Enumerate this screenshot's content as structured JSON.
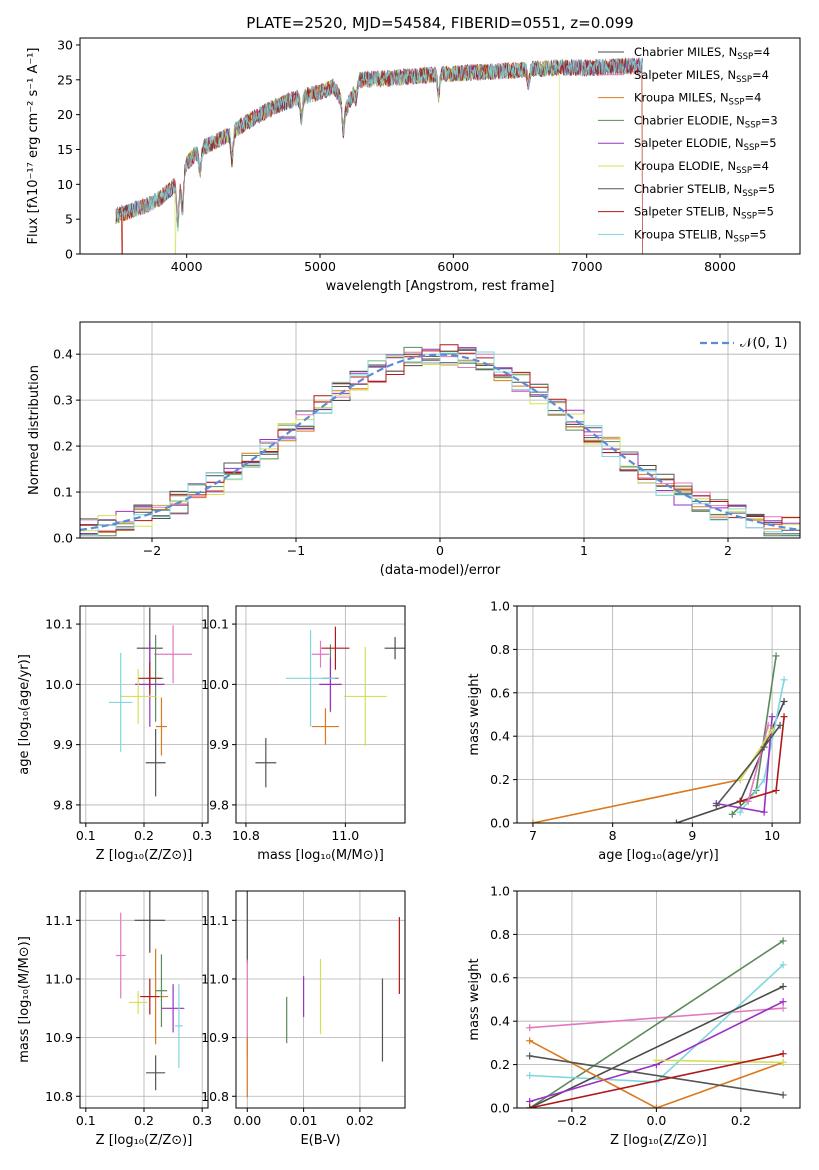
{
  "title": "PLATE=2520, MJD=54584, FIBERID=0551, z=0.099",
  "models": [
    {
      "name": "Chabrier MILES, N",
      "sub": "SSP",
      "n": "=4",
      "color": "#4a4a4a"
    },
    {
      "name": "Salpeter MILES, N",
      "sub": "SSP",
      "n": "=4",
      "color": "#e377c2"
    },
    {
      "name": "Kroupa MILES, N",
      "sub": "SSP",
      "n": "=4",
      "color": "#d97a1e"
    },
    {
      "name": "Chabrier ELODIE, N",
      "sub": "SSP",
      "n": "=3",
      "color": "#5a8a5a"
    },
    {
      "name": "Salpeter ELODIE, N",
      "sub": "SSP",
      "n": "=5",
      "color": "#9b30c4"
    },
    {
      "name": "Kroupa ELODIE, N",
      "sub": "SSP",
      "n": "=4",
      "color": "#d4e157"
    },
    {
      "name": "Chabrier STELIB, N",
      "sub": "SSP",
      "n": "=5",
      "color": "#555555"
    },
    {
      "name": "Salpeter STELIB, N",
      "sub": "SSP",
      "n": "=5",
      "color": "#b01818"
    },
    {
      "name": "Kroupa STELIB, N",
      "sub": "SSP",
      "n": "=5",
      "color": "#7fd6e0"
    }
  ],
  "chart_data": [
    {
      "type": "line",
      "xlabel": "wavelength [Angstrom, rest frame]",
      "ylabel": "Flux [fλ10⁻¹⁷ erg cm⁻² s⁻¹ A⁻¹]",
      "xlim": [
        3200,
        8600
      ],
      "ylim": [
        0,
        31
      ],
      "xticks": [
        4000,
        5000,
        6000,
        7000,
        8000
      ],
      "yticks": [
        0,
        5,
        10,
        15,
        20,
        25,
        30
      ],
      "spectrum_anchors": {
        "x": [
          3470,
          3550,
          3700,
          3800,
          3950,
          4000,
          4100,
          4300,
          4500,
          4700,
          4850,
          5000,
          5100,
          5200,
          5300,
          5500,
          5700,
          5900,
          6100,
          6300,
          6500,
          6600,
          6800,
          7000,
          7200,
          7400
        ],
        "y": [
          5.5,
          6,
          7,
          8,
          10.5,
          13,
          15,
          17,
          19.5,
          21.5,
          22.5,
          23.2,
          24,
          21,
          25,
          25.2,
          25.5,
          25.8,
          26,
          26.2,
          26.4,
          26.5,
          26.8,
          26.7,
          26.9,
          27
        ]
      },
      "spectrum_edges": {
        "Kroupa ELODIE": [
          3920,
          6800
        ],
        "Salpeter STELIB": [
          3520,
          7420
        ],
        "Kroupa MILES": [
          3520,
          7420
        ]
      },
      "grid": false,
      "legend": "right"
    },
    {
      "type": "bar",
      "xlabel": "(data-model)/error",
      "ylabel": "Normed distribution",
      "xlim": [
        -2.5,
        2.5
      ],
      "ylim": [
        0,
        0.47
      ],
      "xticks": [
        -2,
        -1,
        0,
        1,
        2
      ],
      "yticks": [
        0,
        0.1,
        0.2,
        0.3,
        0.4
      ],
      "bins": 40,
      "reference_label": "𝒩(0, 1)",
      "reference_color": "#5b8bd6",
      "grid": true,
      "legend": "top-right"
    },
    {
      "type": "scatter",
      "xlabel": "Z [log₁₀(Z/Z⊙)]",
      "ylabel": "age  [log₁₀(age/yr)]",
      "xlim": [
        0.09,
        0.31
      ],
      "ylim": [
        9.77,
        10.13
      ],
      "xticks": [
        0.1,
        0.2,
        0.3
      ],
      "yticks": [
        9.8,
        9.9,
        10.0,
        10.1
      ],
      "points": [
        [
          0.21,
          10.06
        ],
        [
          0.25,
          10.05
        ],
        [
          0.23,
          9.93
        ],
        [
          0.22,
          10.01
        ],
        [
          0.21,
          10.0
        ],
        [
          0.19,
          9.98
        ],
        [
          0.22,
          9.87
        ],
        [
          0.21,
          10.01
        ],
        [
          0.16,
          9.97
        ]
      ],
      "grid": true
    },
    {
      "type": "scatter",
      "xlabel": "mass [log₁₀(M/M⊙)]",
      "ylabel": "",
      "xlim": [
        10.78,
        11.12
      ],
      "ylim": [
        9.77,
        10.13
      ],
      "xticks": [
        10.8,
        11.0
      ],
      "yticks": [
        9.8,
        9.9,
        10.0,
        10.1
      ],
      "points": [
        [
          11.1,
          10.06
        ],
        [
          10.95,
          10.05
        ],
        [
          10.96,
          9.93
        ],
        [
          10.97,
          10.01
        ],
        [
          10.97,
          10.0
        ],
        [
          11.04,
          9.98
        ],
        [
          10.84,
          9.87
        ],
        [
          10.98,
          10.06
        ],
        [
          10.93,
          10.01
        ]
      ],
      "grid": true
    },
    {
      "type": "line",
      "xlabel": "age  [log₁₀(age/yr)]",
      "ylabel": "mass weight",
      "xlim": [
        6.8,
        10.35
      ],
      "ylim": [
        0,
        1.0
      ],
      "xticks": [
        7,
        8,
        9,
        10
      ],
      "yticks": [
        0,
        0.2,
        0.4,
        0.6,
        0.8,
        1.0
      ],
      "series": [
        {
          "name": "Chabrier ELODIE",
          "values": [
            [
              9.5,
              0.04
            ],
            [
              9.8,
              0.15
            ],
            [
              10.05,
              0.77
            ]
          ]
        },
        {
          "name": "Kroupa MILES",
          "values": [
            [
              7.0,
              0.0
            ],
            [
              9.6,
              0.2
            ],
            [
              10.0,
              0.42
            ]
          ]
        },
        {
          "name": "Chabrier MILES",
          "values": [
            [
              8.8,
              0.0
            ],
            [
              9.6,
              0.1
            ],
            [
              10.15,
              0.56
            ]
          ]
        },
        {
          "name": "Kroupa STELIB",
          "values": [
            [
              9.6,
              0.05
            ],
            [
              9.9,
              0.2
            ],
            [
              10.15,
              0.66
            ]
          ]
        },
        {
          "name": "Salpeter ELODIE",
          "values": [
            [
              9.3,
              0.09
            ],
            [
              9.9,
              0.05
            ],
            [
              10.0,
              0.49
            ]
          ]
        },
        {
          "name": "Salpeter STELIB",
          "values": [
            [
              9.6,
              0.1
            ],
            [
              10.05,
              0.15
            ],
            [
              10.15,
              0.49
            ]
          ]
        },
        {
          "name": "Salpeter MILES",
          "values": [
            [
              9.7,
              0.1
            ],
            [
              9.95,
              0.45
            ]
          ]
        },
        {
          "name": "Kroupa ELODIE",
          "values": [
            [
              9.6,
              0.2
            ],
            [
              10.0,
              0.43
            ]
          ]
        },
        {
          "name": "Chabrier STELIB",
          "values": [
            [
              9.3,
              0.08
            ],
            [
              9.9,
              0.35
            ],
            [
              10.1,
              0.45
            ]
          ]
        }
      ],
      "grid": true
    },
    {
      "type": "errorbar",
      "xlabel": "Z [log₁₀(Z/Z⊙)]",
      "ylabel": "mass [log₁₀(M/M⊙)]",
      "xlim": [
        0.09,
        0.31
      ],
      "ylim": [
        10.78,
        11.15
      ],
      "xticks": [
        0.1,
        0.2,
        0.3
      ],
      "yticks": [
        10.8,
        10.9,
        11.0,
        11.1
      ],
      "points": [
        [
          0.21,
          11.1
        ],
        [
          0.16,
          11.04
        ],
        [
          0.22,
          10.97
        ],
        [
          0.23,
          10.98
        ],
        [
          0.25,
          10.95
        ],
        [
          0.19,
          10.96
        ],
        [
          0.22,
          10.84
        ],
        [
          0.21,
          10.97
        ],
        [
          0.26,
          10.92
        ]
      ],
      "grid": true
    },
    {
      "type": "errorbar",
      "xlabel": "E(B-V)",
      "ylabel": "",
      "xlim": [
        -0.002,
        0.028
      ],
      "ylim": [
        10.78,
        11.15
      ],
      "xticks": [
        0.0,
        0.01,
        0.02
      ],
      "yticks": [
        10.8,
        10.9,
        11.0,
        11.1
      ],
      "points": [
        [
          0.0,
          11.1
        ],
        [
          0.0,
          10.95
        ],
        [
          0.0,
          10.85
        ],
        [
          0.007,
          10.93
        ],
        [
          0.01,
          10.97
        ],
        [
          0.013,
          10.97
        ],
        [
          0.024,
          10.93
        ],
        [
          0.027,
          11.04
        ]
      ],
      "grid": true
    },
    {
      "type": "line",
      "xlabel": "Z [log₁₀(Z/Z⊙)]",
      "ylabel": "mass weight",
      "xlim": [
        -0.33,
        0.34
      ],
      "ylim": [
        0,
        1.0
      ],
      "xticks": [
        -0.2,
        0.0,
        0.2
      ],
      "yticks": [
        0,
        0.2,
        0.4,
        0.6,
        0.8,
        1.0
      ],
      "series": [
        {
          "name": "Salpeter MILES",
          "values": [
            [
              -0.3,
              0.37
            ],
            [
              0.3,
              0.46
            ]
          ]
        },
        {
          "name": "Chabrier ELODIE",
          "values": [
            [
              -0.3,
              0.0
            ],
            [
              0.3,
              0.77
            ]
          ]
        },
        {
          "name": "Kroupa STELIB",
          "values": [
            [
              -0.3,
              0.15
            ],
            [
              0.0,
              0.12
            ],
            [
              0.3,
              0.66
            ]
          ]
        },
        {
          "name": "Chabrier MILES",
          "values": [
            [
              -0.3,
              0.0
            ],
            [
              0.3,
              0.56
            ]
          ]
        },
        {
          "name": "Salpeter ELODIE",
          "values": [
            [
              -0.3,
              0.03
            ],
            [
              0.0,
              0.2
            ],
            [
              0.3,
              0.49
            ]
          ]
        },
        {
          "name": "Kroupa MILES",
          "values": [
            [
              -0.3,
              0.31
            ],
            [
              0.0,
              0.0
            ],
            [
              0.3,
              0.21
            ]
          ]
        },
        {
          "name": "Kroupa ELODIE",
          "values": [
            [
              0.0,
              0.22
            ],
            [
              0.3,
              0.21
            ]
          ]
        },
        {
          "name": "Chabrier STELIB",
          "values": [
            [
              -0.3,
              0.24
            ],
            [
              0.3,
              0.06
            ]
          ]
        },
        {
          "name": "Salpeter STELIB",
          "values": [
            [
              -0.3,
              0.0
            ],
            [
              0.3,
              0.25
            ]
          ]
        }
      ],
      "grid": true
    }
  ]
}
